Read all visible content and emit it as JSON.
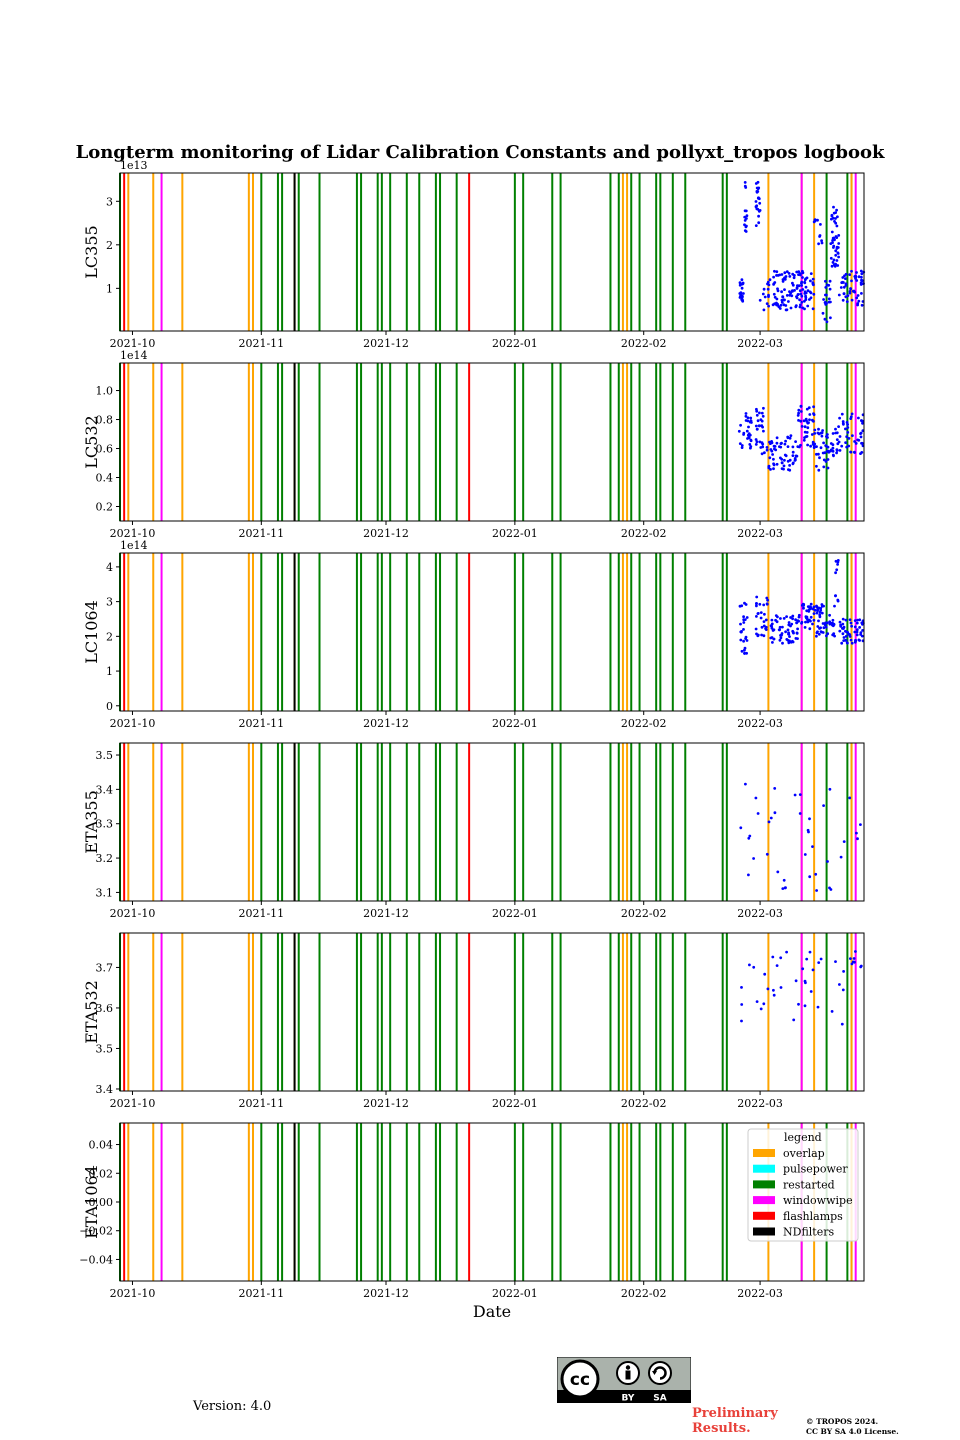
{
  "chart_data": {
    "type": "scatter",
    "title": "Longterm monitoring of Lidar Calibration Constants and pollyxt_tropos logbook",
    "xlabel": "Date",
    "x_range": [
      "2021-09-28",
      "2022-03-26"
    ],
    "x_ticks": [
      "2021-10",
      "2021-11",
      "2021-12",
      "2022-01",
      "2022-02",
      "2022-03"
    ],
    "x_tick_dates": [
      "2021-10-01",
      "2021-11-01",
      "2021-12-01",
      "2022-01-01",
      "2022-02-01",
      "2022-03-01"
    ],
    "panels": [
      {
        "id": "lc355",
        "ylabel": "LC355",
        "offset": "1e13",
        "ylim": [
          0.02,
          3.65
        ],
        "yticks": [
          1,
          2,
          3
        ],
        "ytick_labels": [
          "1",
          "2",
          "3"
        ],
        "series": [
          {
            "start": "2022-02-24",
            "end": "2022-02-25",
            "n": 20,
            "lo": 0.6,
            "hi": 1.2
          },
          {
            "start": "2022-02-25",
            "end": "2022-02-26",
            "n": 14,
            "lo": 2.3,
            "hi": 3.5
          },
          {
            "start": "2022-02-28",
            "end": "2022-03-01",
            "n": 22,
            "lo": 2.1,
            "hi": 3.5
          },
          {
            "start": "2022-03-01",
            "end": "2022-03-04",
            "n": 14,
            "lo": 0.5,
            "hi": 1.2
          },
          {
            "start": "2022-03-04",
            "end": "2022-03-14",
            "n": 120,
            "lo": 0.5,
            "hi": 1.4
          },
          {
            "start": "2022-03-14",
            "end": "2022-03-15",
            "n": 5,
            "lo": 2.5,
            "hi": 2.6
          },
          {
            "start": "2022-03-15",
            "end": "2022-03-16",
            "n": 6,
            "lo": 2.0,
            "hi": 2.5
          },
          {
            "start": "2022-03-16",
            "end": "2022-03-18",
            "n": 20,
            "lo": 0.2,
            "hi": 1.2
          },
          {
            "start": "2022-03-18",
            "end": "2022-03-20",
            "n": 45,
            "lo": 1.5,
            "hi": 2.9
          },
          {
            "start": "2022-03-20",
            "end": "2022-03-26",
            "n": 55,
            "lo": 0.6,
            "hi": 1.4
          }
        ]
      },
      {
        "id": "lc532",
        "ylabel": "LC532",
        "offset": "1e14",
        "ylim": [
          0.1,
          1.19
        ],
        "yticks": [
          0.2,
          0.4,
          0.6,
          0.8,
          1.0
        ],
        "ytick_labels": [
          "0.2",
          "0.4",
          "0.6",
          "0.8",
          "1.0"
        ],
        "series": [
          {
            "start": "2022-02-24",
            "end": "2022-02-27",
            "n": 30,
            "lo": 0.6,
            "hi": 0.85
          },
          {
            "start": "2022-02-28",
            "end": "2022-03-03",
            "n": 30,
            "lo": 0.55,
            "hi": 0.9
          },
          {
            "start": "2022-03-03",
            "end": "2022-03-10",
            "n": 60,
            "lo": 0.45,
            "hi": 0.7
          },
          {
            "start": "2022-03-10",
            "end": "2022-03-14",
            "n": 40,
            "lo": 0.6,
            "hi": 0.9
          },
          {
            "start": "2022-03-14",
            "end": "2022-03-19",
            "n": 45,
            "lo": 0.45,
            "hi": 0.75
          },
          {
            "start": "2022-03-19",
            "end": "2022-03-26",
            "n": 55,
            "lo": 0.55,
            "hi": 0.85
          }
        ]
      },
      {
        "id": "lc1064",
        "ylabel": "LC1064",
        "offset": "1e14",
        "ylim": [
          -0.15,
          4.4
        ],
        "yticks": [
          0,
          1,
          2,
          3,
          4
        ],
        "ytick_labels": [
          "0",
          "1",
          "2",
          "3",
          "4"
        ],
        "series": [
          {
            "start": "2022-02-24",
            "end": "2022-02-26",
            "n": 25,
            "lo": 1.5,
            "hi": 3.0
          },
          {
            "start": "2022-02-28",
            "end": "2022-03-03",
            "n": 30,
            "lo": 2.0,
            "hi": 3.2
          },
          {
            "start": "2022-03-03",
            "end": "2022-03-10",
            "n": 60,
            "lo": 1.8,
            "hi": 2.6
          },
          {
            "start": "2022-03-10",
            "end": "2022-03-14",
            "n": 40,
            "lo": 2.2,
            "hi": 3.0
          },
          {
            "start": "2022-03-14",
            "end": "2022-03-19",
            "n": 50,
            "lo": 2.0,
            "hi": 3.0
          },
          {
            "start": "2022-03-19",
            "end": "2022-03-20",
            "n": 10,
            "lo": 3.0,
            "hi": 4.2
          },
          {
            "start": "2022-03-20",
            "end": "2022-03-26",
            "n": 55,
            "lo": 1.8,
            "hi": 2.5
          }
        ]
      },
      {
        "id": "eta355",
        "ylabel": "ETA355",
        "offset": "",
        "ylim": [
          3.075,
          3.535
        ],
        "yticks": [
          3.1,
          3.2,
          3.3,
          3.4,
          3.5
        ],
        "ytick_labels": [
          "3.1",
          "3.2",
          "3.3",
          "3.4",
          "3.5"
        ],
        "series": [
          {
            "start": "2022-02-24",
            "end": "2022-03-26",
            "n": 40,
            "lo": 3.1,
            "hi": 3.42
          }
        ]
      },
      {
        "id": "eta532",
        "ylabel": "ETA532",
        "offset": "",
        "ylim": [
          3.395,
          3.785
        ],
        "yticks": [
          3.4,
          3.5,
          3.6,
          3.7
        ],
        "ytick_labels": [
          "3.4",
          "3.5",
          "3.6",
          "3.7"
        ],
        "series": [
          {
            "start": "2022-02-24",
            "end": "2022-03-26",
            "n": 45,
            "lo": 3.55,
            "hi": 3.75
          }
        ]
      },
      {
        "id": "eta1064",
        "ylabel": "ETA1064",
        "offset": "",
        "ylim": [
          -0.055,
          0.055
        ],
        "yticks": [
          -0.04,
          -0.02,
          0.0,
          0.02,
          0.04
        ],
        "ytick_labels": [
          "−0.04",
          "−0.02",
          "0.00",
          "0.02",
          "0.04"
        ],
        "series": []
      }
    ],
    "events": {
      "overlap": [
        "2021-09-30",
        "2021-10-06",
        "2021-10-13",
        "2021-10-29",
        "2021-10-30",
        "2021-11-09",
        "2022-01-27",
        "2022-01-28",
        "2022-03-03",
        "2022-03-11",
        "2022-03-14",
        "2022-03-23"
      ],
      "restarted": [
        "2021-09-28",
        "2021-11-01",
        "2021-11-05",
        "2021-11-06",
        "2021-11-10",
        "2021-11-15",
        "2021-11-24",
        "2021-11-25",
        "2021-11-29",
        "2021-11-30",
        "2021-12-02",
        "2021-12-06",
        "2021-12-09",
        "2021-12-13",
        "2021-12-14",
        "2021-12-18",
        "2022-01-01",
        "2022-01-03",
        "2022-01-10",
        "2022-01-12",
        "2022-01-24",
        "2022-01-26",
        "2022-01-29",
        "2022-01-31",
        "2022-02-04",
        "2022-02-05",
        "2022-02-08",
        "2022-02-11",
        "2022-02-20",
        "2022-02-21",
        "2022-03-17",
        "2022-03-22",
        "2022-03-23"
      ],
      "windowwipe": [
        "2021-10-08",
        "2022-03-11",
        "2022-03-24"
      ],
      "flashlamps": [
        "2021-09-29",
        "2021-12-21"
      ],
      "NDfilters": [
        "2021-11-09"
      ],
      "pulsepower": []
    },
    "legend": {
      "position": "lower-right of last panel",
      "title": "legend",
      "entries": [
        {
          "label": "overlap",
          "color": "#ffa500"
        },
        {
          "label": "pulsepower",
          "color": "#00ffff"
        },
        {
          "label": "restarted",
          "color": "#008000"
        },
        {
          "label": "windowwipe",
          "color": "#ff00ff"
        },
        {
          "label": "flashlamps",
          "color": "#ff0000"
        },
        {
          "label": "NDfilters",
          "color": "#000000"
        }
      ]
    },
    "point_color": "#0000ff"
  },
  "footer": {
    "version": "Version: 4.0",
    "cc_badge": {
      "by": "BY",
      "sa": "SA",
      "cc": "cc"
    },
    "preliminary": "Preliminary Results.",
    "copyright_line1": "© TROPOS 2024.",
    "copyright_line2": "CC BY SA 4.0 License."
  }
}
